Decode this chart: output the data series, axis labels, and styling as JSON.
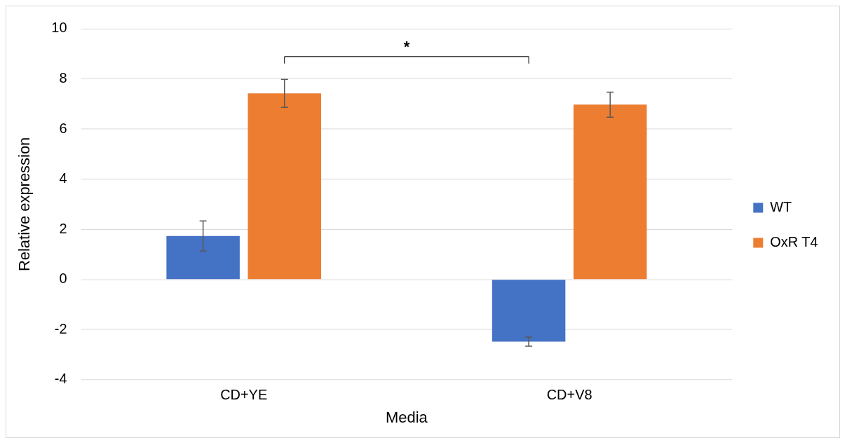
{
  "chart_data": {
    "type": "bar",
    "xlabel": "Media",
    "ylabel": "Relative expression",
    "categories": [
      "CD+YE",
      "CD+V8"
    ],
    "series": [
      {
        "name": "WT",
        "color": "#4472c4",
        "values": [
          1.73,
          -2.48
        ],
        "errors": [
          0.6,
          0.18
        ]
      },
      {
        "name": "OxR T4",
        "color": "#ed7d31",
        "values": [
          7.42,
          6.97
        ],
        "errors": [
          0.56,
          0.5
        ]
      }
    ],
    "ylim": [
      -4,
      10
    ],
    "yticks": [
      -4,
      -2,
      0,
      2,
      4,
      6,
      8,
      10
    ],
    "grid": "y",
    "legend": "right",
    "annotations": [
      "*"
    ]
  }
}
